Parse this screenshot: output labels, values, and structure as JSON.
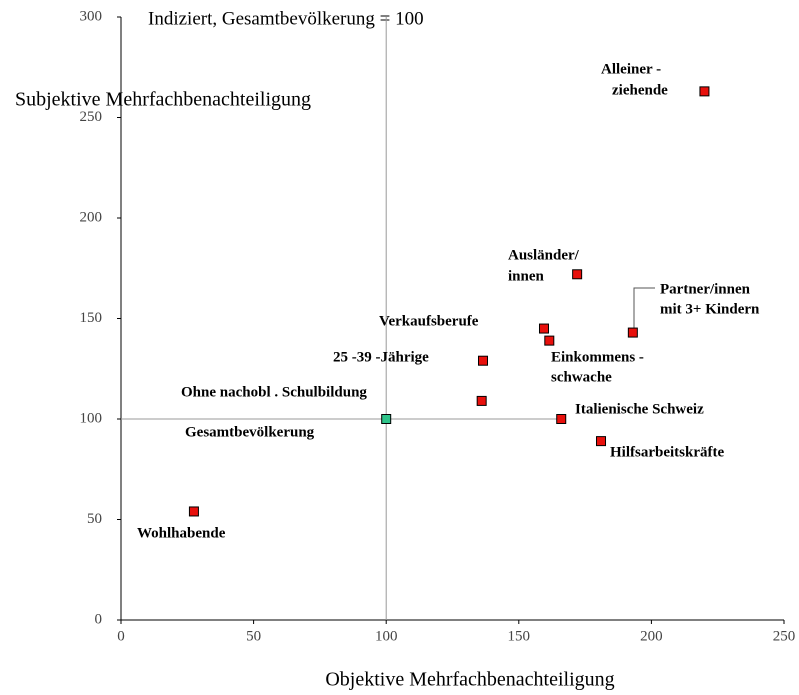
{
  "chart_data": {
    "type": "scatter",
    "title": "Indiziert, Gesamtbevölkerung = 100",
    "y_label": "Subjektive Mehrfachbenachteiligung",
    "x_label": "Objektive Mehrfachbenachteiligung",
    "labels": [
      [
        "Alleiner -",
        "ziehende"
      ],
      [
        "Ausländer/",
        "innen"
      ],
      [
        "Partner/innen",
        "mit 3+ Kindern"
      ],
      [
        "Verkaufsberufe"
      ],
      [
        "Einkommens -",
        "schwache"
      ],
      [
        "25 -39 -Jährige"
      ],
      [
        "Ohne  nachobl . Schulbildung"
      ],
      [
        "Gesamtbevölkerung"
      ],
      [
        "Italienische Schweiz"
      ],
      [
        "Hilfsarbeitskräfte"
      ],
      [
        "Wohlhabende"
      ]
    ],
    "x": [
      220,
      172,
      193,
      159.5,
      161.5,
      136.5,
      136,
      100,
      166,
      181,
      27.5
    ],
    "values": [
      263,
      172,
      143,
      145,
      139,
      129,
      109,
      100,
      100,
      89,
      54
    ],
    "colors": [
      "#e8100c",
      "#e8100c",
      "#e8100c",
      "#e8100c",
      "#e8100c",
      "#e8100c",
      "#e8100c",
      "#2fc48a",
      "#e8100c",
      "#e8100c",
      "#e8100c"
    ],
    "xlim": [
      0,
      250
    ],
    "xticks": [
      0,
      50,
      100,
      150,
      200,
      250
    ],
    "ylim": [
      0,
      300
    ],
    "yticks": [
      0,
      50,
      100,
      150,
      200,
      250,
      300
    ],
    "reference_x": 100,
    "reference_y": 100
  }
}
